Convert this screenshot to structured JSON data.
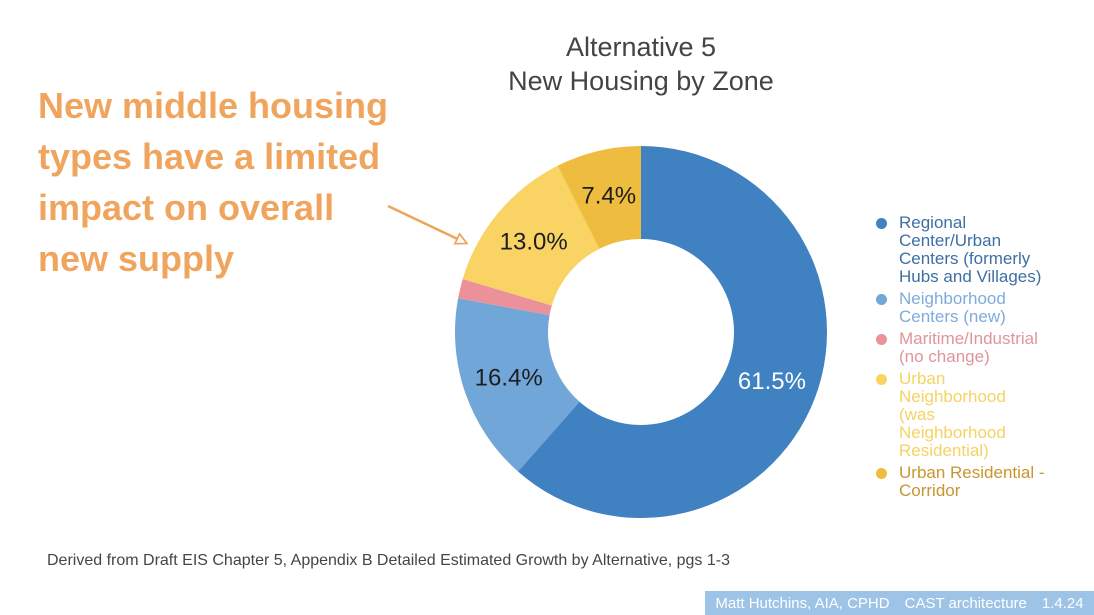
{
  "title": {
    "text": "Alternative 5\nNew Housing by Zone",
    "color": "#444444"
  },
  "annotation": {
    "text": "New middle housing\ntypes have a limited\nimpact on overall\nnew supply",
    "color": "#f0a55e",
    "arrow_color": "#eda45b"
  },
  "chart_data": {
    "type": "pie",
    "donut": true,
    "title": "Alternative 5 New Housing by Zone",
    "direction": "clockwise",
    "start_angle_deg": 0,
    "inner_radius_ratio": 0.5,
    "legend_position": "right",
    "slices": [
      {
        "label": "Regional Center/Urban Centers (formerly Hubs and Villages)",
        "legend_lines": [
          "Regional",
          "Center/Urban",
          "Centers (formerly",
          "Hubs and Villages)"
        ],
        "value": 61.5,
        "display": "61.5%",
        "color": "#3f81c1",
        "label_color": "#ffffff",
        "legend_text_color": "#3d6fa5"
      },
      {
        "label": "Neighborhood Centers (new)",
        "legend_lines": [
          "Neighborhood",
          "Centers (new)"
        ],
        "value": 16.4,
        "display": "16.4%",
        "color": "#71a6d9",
        "label_color": "#1e1e1e",
        "legend_text_color": "#7fabdc"
      },
      {
        "label": "Maritime/Industrial (no change)",
        "legend_lines": [
          "Maritime/Industrial",
          "(no change)"
        ],
        "value": 1.7,
        "color": "#ec9199",
        "legend_text_color": "#e0949b"
      },
      {
        "label": "Urban Neighborhood (was Neighborhood Residential)",
        "legend_lines": [
          "Urban",
          "Neighborhood",
          "(was",
          "Neighborhood",
          "Residential)"
        ],
        "value": 13.0,
        "display": "13.0%",
        "color": "#f9d464",
        "label_color": "#1e1e1e",
        "legend_text_color": "#f6d263"
      },
      {
        "label": "Urban Residential - Corridor",
        "legend_lines": [
          "Urban Residential -",
          "Corridor"
        ],
        "value": 7.4,
        "display": "7.4%",
        "color": "#eebc3e",
        "label_color": "#1e1e1e",
        "legend_text_color": "#c9952e"
      }
    ]
  },
  "footer": {
    "source_text": "Derived from Draft EIS Chapter 5, Appendix B Detailed Estimated Growth by Alternative, pgs 1-3"
  },
  "credit": {
    "author": "Matt Hutchins, AIA, CPHD",
    "firm": "CAST architecture",
    "date": "1.4.24",
    "bg_color": "#9dc3e6"
  }
}
